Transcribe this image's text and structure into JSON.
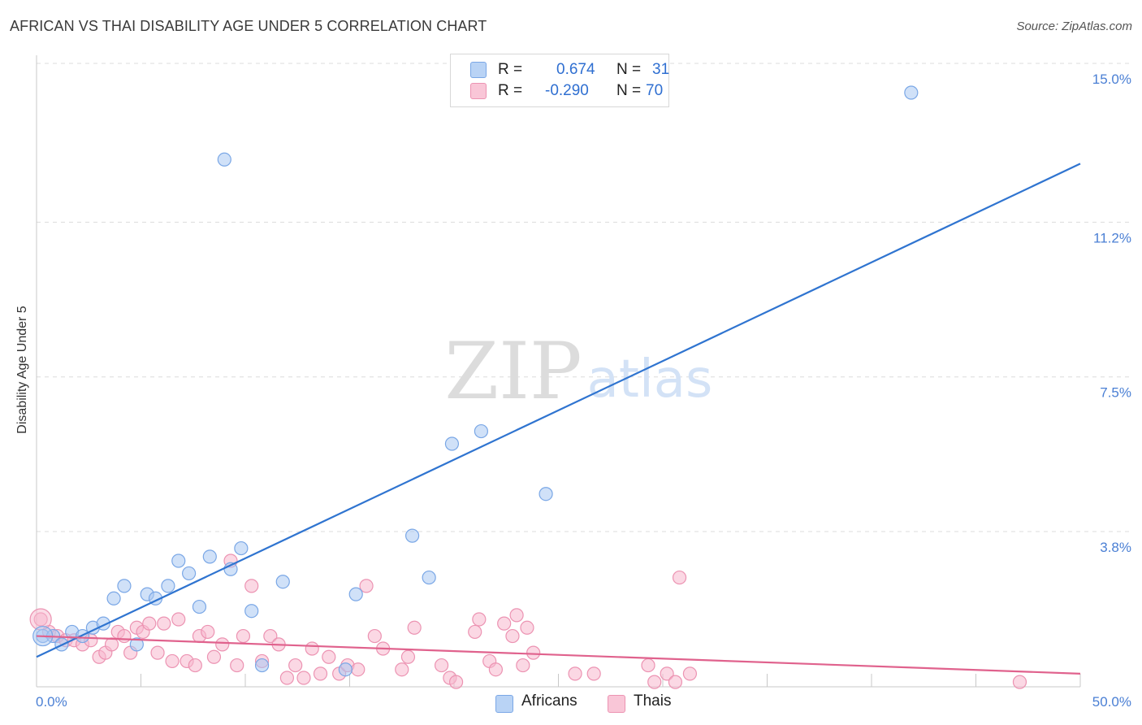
{
  "header": {
    "title": "AFRICAN VS THAI DISABILITY AGE UNDER 5 CORRELATION CHART",
    "source": "Source: ZipAtlas.com"
  },
  "watermark": {
    "zip": "ZIP",
    "atlas": "atlas"
  },
  "legend": {
    "rows": [
      {
        "r_label": "R =",
        "r_value": "0.674",
        "n_label": "N =",
        "n_value": "31"
      },
      {
        "r_label": "R =",
        "r_value": "-0.290",
        "n_label": "N =",
        "n_value": "70"
      }
    ]
  },
  "bottom_legend": {
    "africans": "Africans",
    "thais": "Thais"
  },
  "colors": {
    "africans_fill": "#a9c8f2",
    "africans_stroke": "#7aa7e6",
    "africans_line": "#2f74d0",
    "thais_fill": "#f7b8cd",
    "thais_stroke": "#ec93b2",
    "thais_line": "#e0628d",
    "grid": "#dcdcdc",
    "tick_label": "#4a7fd4"
  },
  "chart_data": {
    "type": "scatter",
    "title": "AFRICAN VS THAI DISABILITY AGE UNDER 5 CORRELATION CHART",
    "xlabel": "",
    "ylabel": "Disability Age Under 5",
    "xlim": [
      0,
      50
    ],
    "ylim": [
      0,
      15.4
    ],
    "x_tick_labels": [
      {
        "value": 0,
        "label": "0.0%"
      },
      {
        "value": 50,
        "label": "50.0%"
      }
    ],
    "y_tick_labels": [
      {
        "value": 3.8,
        "label": "3.8%"
      },
      {
        "value": 7.5,
        "label": "7.5%"
      },
      {
        "value": 11.2,
        "label": "11.2%"
      },
      {
        "value": 15.0,
        "label": "15.0%"
      }
    ],
    "series": [
      {
        "name": "Africans",
        "r": 0.674,
        "n": 31,
        "trend": {
          "x": [
            0,
            50
          ],
          "y": [
            0.8,
            12.6
          ]
        },
        "points": [
          [
            0.3,
            1.3
          ],
          [
            0.8,
            1.3
          ],
          [
            1.2,
            1.1
          ],
          [
            1.7,
            1.4
          ],
          [
            2.2,
            1.3
          ],
          [
            2.7,
            1.5
          ],
          [
            3.2,
            1.6
          ],
          [
            3.7,
            2.2
          ],
          [
            4.2,
            2.5
          ],
          [
            4.8,
            1.1
          ],
          [
            5.3,
            2.3
          ],
          [
            5.7,
            2.2
          ],
          [
            6.3,
            2.5
          ],
          [
            6.8,
            3.1
          ],
          [
            7.3,
            2.8
          ],
          [
            7.8,
            2.0
          ],
          [
            8.3,
            3.2
          ],
          [
            9.0,
            12.7
          ],
          [
            9.3,
            2.9
          ],
          [
            9.8,
            3.4
          ],
          [
            10.3,
            1.9
          ],
          [
            10.8,
            0.6
          ],
          [
            11.8,
            2.6
          ],
          [
            14.8,
            0.5
          ],
          [
            15.3,
            2.3
          ],
          [
            18.0,
            3.7
          ],
          [
            18.8,
            2.7
          ],
          [
            19.9,
            5.9
          ],
          [
            21.3,
            6.2
          ],
          [
            24.4,
            4.7
          ],
          [
            41.9,
            14.3
          ]
        ]
      },
      {
        "name": "Thais",
        "r": -0.29,
        "n": 70,
        "trend": {
          "x": [
            0,
            50
          ],
          "y": [
            1.3,
            0.4
          ]
        },
        "points": [
          [
            0.2,
            1.7
          ],
          [
            0.6,
            1.4
          ],
          [
            1.0,
            1.3
          ],
          [
            1.4,
            1.2
          ],
          [
            1.8,
            1.2
          ],
          [
            2.2,
            1.1
          ],
          [
            2.6,
            1.2
          ],
          [
            3.0,
            0.8
          ],
          [
            3.3,
            0.9
          ],
          [
            3.6,
            1.1
          ],
          [
            3.9,
            1.4
          ],
          [
            4.2,
            1.3
          ],
          [
            4.5,
            0.9
          ],
          [
            4.8,
            1.5
          ],
          [
            5.1,
            1.4
          ],
          [
            5.4,
            1.6
          ],
          [
            5.8,
            0.9
          ],
          [
            6.1,
            1.6
          ],
          [
            6.5,
            0.7
          ],
          [
            6.8,
            1.7
          ],
          [
            7.2,
            0.7
          ],
          [
            7.6,
            0.6
          ],
          [
            7.8,
            1.3
          ],
          [
            8.2,
            1.4
          ],
          [
            8.5,
            0.8
          ],
          [
            8.9,
            1.1
          ],
          [
            9.3,
            3.1
          ],
          [
            9.6,
            0.6
          ],
          [
            9.9,
            1.3
          ],
          [
            10.3,
            2.5
          ],
          [
            10.8,
            0.7
          ],
          [
            11.2,
            1.3
          ],
          [
            11.6,
            1.1
          ],
          [
            12.0,
            0.3
          ],
          [
            12.4,
            0.6
          ],
          [
            12.8,
            0.3
          ],
          [
            13.2,
            1.0
          ],
          [
            13.6,
            0.4
          ],
          [
            14.0,
            0.8
          ],
          [
            14.5,
            0.4
          ],
          [
            14.9,
            0.6
          ],
          [
            15.4,
            0.5
          ],
          [
            15.8,
            2.5
          ],
          [
            16.2,
            1.3
          ],
          [
            16.6,
            1.0
          ],
          [
            17.5,
            0.5
          ],
          [
            17.8,
            0.8
          ],
          [
            18.1,
            1.5
          ],
          [
            19.4,
            0.6
          ],
          [
            19.8,
            0.3
          ],
          [
            20.1,
            0.2
          ],
          [
            21.0,
            1.4
          ],
          [
            21.2,
            1.7
          ],
          [
            21.7,
            0.7
          ],
          [
            22.0,
            0.5
          ],
          [
            22.4,
            1.6
          ],
          [
            22.8,
            1.3
          ],
          [
            23.0,
            1.8
          ],
          [
            23.3,
            0.6
          ],
          [
            23.5,
            1.5
          ],
          [
            23.8,
            0.9
          ],
          [
            25.8,
            0.4
          ],
          [
            26.7,
            0.4
          ],
          [
            29.3,
            0.6
          ],
          [
            29.6,
            0.2
          ],
          [
            30.2,
            0.4
          ],
          [
            30.6,
            0.2
          ],
          [
            30.8,
            2.7
          ],
          [
            31.3,
            0.4
          ],
          [
            47.1,
            0.2
          ]
        ]
      }
    ]
  }
}
